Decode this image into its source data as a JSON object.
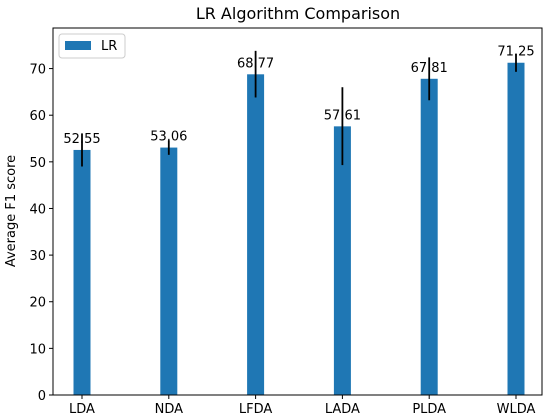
{
  "chart_data": {
    "type": "bar",
    "title": "LR Algorithm Comparison",
    "xlabel": "",
    "ylabel": "Average F1 score",
    "categories": [
      "LDA",
      "NDA",
      "LFDA",
      "LADA",
      "PLDA",
      "WLDA"
    ],
    "series": [
      {
        "name": "LR",
        "color": "#1f77b4",
        "values": [
          52.55,
          53.06,
          68.77,
          57.61,
          67.81,
          71.25
        ],
        "value_labels": [
          "52.55",
          "53.06",
          "68.77",
          "57.61",
          "67.81",
          "71.25"
        ],
        "error_low": [
          49.0,
          51.5,
          63.8,
          49.3,
          63.2,
          69.3
        ],
        "error_high": [
          56.1,
          54.6,
          73.8,
          66.0,
          72.4,
          73.2
        ]
      }
    ],
    "ylim": [
      0,
      78.7
    ],
    "yticks": [
      0,
      10,
      20,
      30,
      40,
      50,
      60,
      70
    ],
    "grid": false,
    "legend": "top-left"
  }
}
